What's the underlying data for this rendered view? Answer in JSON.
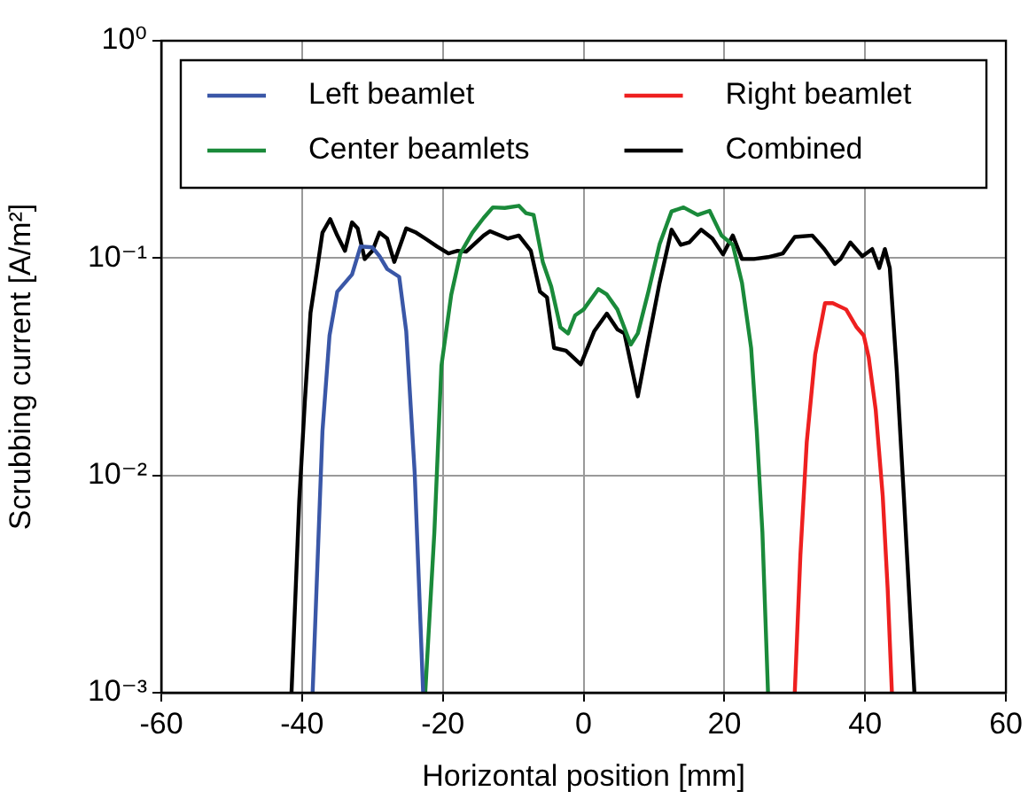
{
  "chart_data": {
    "type": "line",
    "xlabel": "Horizontal position [mm]",
    "ylabel": "Scrubbing current [A/m²]",
    "log": "y",
    "grid": true,
    "legend": "top",
    "marker": "none",
    "line_style": "solid",
    "xlim": [
      -60,
      60
    ],
    "xticks": [
      -60,
      -40,
      -20,
      0,
      20,
      40,
      60
    ],
    "ylim": [
      0.001,
      1
    ],
    "yticks": [
      {
        "value": 0.001,
        "label": "10⁻³"
      },
      {
        "value": 0.01,
        "label": "10⁻²"
      },
      {
        "value": 0.1,
        "label": "10⁻¹"
      },
      {
        "value": 1,
        "label": "10⁰"
      }
    ],
    "series": [
      {
        "name": "Left beamlet",
        "color": "#3a57a7",
        "x": [
          -38.5,
          -37.1,
          -36.1,
          -35,
          -32.9,
          -31.7,
          -30,
          -29,
          -27.9,
          -26.2,
          -25.2,
          -24,
          -22.8
        ],
        "values": [
          0.001,
          0.016,
          0.044,
          0.07,
          0.084,
          0.113,
          0.112,
          0.102,
          0.089,
          0.082,
          0.046,
          0.0103,
          0.001
        ]
      },
      {
        "name": "Center beamlets",
        "color": "#1a8a3a",
        "x": [
          -22.5,
          -21.2,
          -20.2,
          -18.8,
          -17.5,
          -15.8,
          -14.2,
          -12.9,
          -11.2,
          -9.2,
          -8.2,
          -7.1,
          -5.8,
          -4.6,
          -3.3,
          -2.2,
          -1.2,
          0,
          2.1,
          3.3,
          4.8,
          6.7,
          7.7,
          9.2,
          10.8,
          12.5,
          14.2,
          16.2,
          17.9,
          19.6,
          21.2,
          22.5,
          23.8,
          24.6,
          25.4,
          26.2
        ],
        "values": [
          0.001,
          0.0055,
          0.032,
          0.068,
          0.105,
          0.131,
          0.153,
          0.171,
          0.17,
          0.174,
          0.161,
          0.158,
          0.096,
          0.074,
          0.048,
          0.045,
          0.0545,
          0.058,
          0.072,
          0.068,
          0.058,
          0.04,
          0.045,
          0.07,
          0.116,
          0.164,
          0.171,
          0.158,
          0.165,
          0.127,
          0.115,
          0.077,
          0.0386,
          0.016,
          0.0055,
          0.001
        ]
      },
      {
        "name": "Right beamlet",
        "color": "#ee2020",
        "x": [
          30,
          30.8,
          31.7,
          32.9,
          34.3,
          35.4,
          37.3,
          38.8,
          39.8,
          40.5,
          41.5,
          42.5,
          43.2,
          43.8
        ],
        "values": [
          0.001,
          0.0043,
          0.0142,
          0.036,
          0.062,
          0.062,
          0.058,
          0.048,
          0.044,
          0.035,
          0.02,
          0.008,
          0.003,
          0.001
        ]
      },
      {
        "name": "Combined",
        "color": "#000000",
        "x": [
          -41.5,
          -40.4,
          -39.6,
          -38.8,
          -37.9,
          -37.1,
          -36,
          -35,
          -33.9,
          -32.9,
          -32.1,
          -31.1,
          -30,
          -29,
          -27.9,
          -26.9,
          -25.2,
          -23.8,
          -22.5,
          -20.8,
          -19.2,
          -17.9,
          -16.7,
          -14.2,
          -13.3,
          -10.8,
          -9.2,
          -7.5,
          -6.2,
          -5.2,
          -4.2,
          -2.5,
          -0.4,
          1.5,
          3.3,
          4.8,
          5.8,
          7.7,
          9,
          10.8,
          12.5,
          13.8,
          15,
          16.7,
          18.3,
          19.8,
          21.2,
          22.5,
          24.2,
          26.2,
          28.3,
          30,
          32.5,
          34.2,
          35.7,
          36.5,
          37.9,
          39.6,
          41,
          42,
          42.8,
          43.5,
          44.5,
          45.5,
          46.5,
          47
        ],
        "values": [
          0.001,
          0.0076,
          0.022,
          0.056,
          0.087,
          0.131,
          0.151,
          0.127,
          0.108,
          0.146,
          0.137,
          0.099,
          0.108,
          0.131,
          0.123,
          0.096,
          0.137,
          0.131,
          0.123,
          0.113,
          0.105,
          0.108,
          0.107,
          0.127,
          0.133,
          0.123,
          0.127,
          0.108,
          0.07,
          0.066,
          0.0386,
          0.0375,
          0.0324,
          0.046,
          0.0555,
          0.047,
          0.045,
          0.0231,
          0.0386,
          0.077,
          0.135,
          0.115,
          0.118,
          0.135,
          0.123,
          0.104,
          0.127,
          0.099,
          0.099,
          0.101,
          0.105,
          0.125,
          0.127,
          0.11,
          0.094,
          0.099,
          0.118,
          0.102,
          0.11,
          0.09,
          0.11,
          0.09,
          0.03,
          0.008,
          0.002,
          0.001
        ]
      }
    ]
  }
}
